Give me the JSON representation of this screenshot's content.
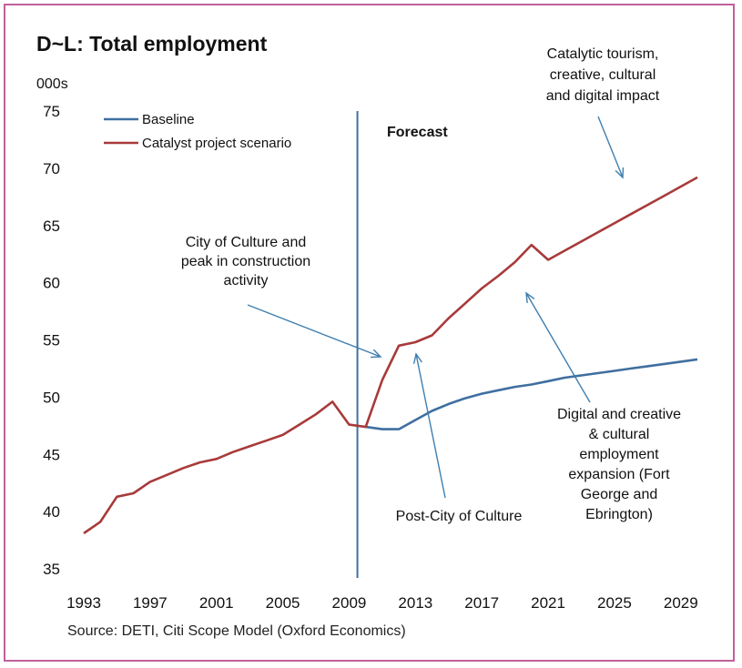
{
  "chart_data": {
    "type": "line",
    "title": "D~L: Total employment",
    "ylabel": "000s",
    "xlabel": "",
    "ylim": [
      35,
      75
    ],
    "yticks": [
      "35",
      "40",
      "45",
      "50",
      "55",
      "60",
      "65",
      "70",
      "75"
    ],
    "xlim": [
      1993,
      2030
    ],
    "xticks": [
      "1993",
      "1997",
      "2001",
      "2005",
      "2009",
      "2013",
      "2017",
      "2021",
      "2025",
      "2029"
    ],
    "grid": false,
    "legend_position": "top-left",
    "forecast_year": 2009.5,
    "forecast_label": "Forecast",
    "series": [
      {
        "name": "Baseline",
        "color": "#3f6fa0",
        "points": [
          [
            2010,
            47.4
          ],
          [
            2011,
            47.2
          ],
          [
            2012,
            47.2
          ],
          [
            2013,
            48.0
          ],
          [
            2014,
            48.8
          ],
          [
            2015,
            49.4
          ],
          [
            2016,
            49.9
          ],
          [
            2017,
            50.3
          ],
          [
            2018,
            50.6
          ],
          [
            2019,
            50.9
          ],
          [
            2020,
            51.1
          ],
          [
            2021,
            51.4
          ],
          [
            2022,
            51.7
          ],
          [
            2023,
            51.9
          ],
          [
            2024,
            52.1
          ],
          [
            2025,
            52.3
          ],
          [
            2026,
            52.5
          ],
          [
            2027,
            52.7
          ],
          [
            2028,
            52.9
          ],
          [
            2029,
            53.1
          ],
          [
            2030,
            53.3
          ]
        ]
      },
      {
        "name": "Catalyst project scenario",
        "color": "#a83a3a",
        "points": [
          [
            1993,
            38.1
          ],
          [
            1994,
            39.1
          ],
          [
            1995,
            41.3
          ],
          [
            1996,
            41.6
          ],
          [
            1997,
            42.6
          ],
          [
            1998,
            43.2
          ],
          [
            1999,
            43.8
          ],
          [
            2000,
            44.3
          ],
          [
            2001,
            44.6
          ],
          [
            2002,
            45.2
          ],
          [
            2003,
            45.7
          ],
          [
            2004,
            46.2
          ],
          [
            2005,
            46.7
          ],
          [
            2006,
            47.6
          ],
          [
            2007,
            48.5
          ],
          [
            2008,
            49.6
          ],
          [
            2009,
            47.6
          ],
          [
            2010,
            47.4
          ],
          [
            2011,
            51.5
          ],
          [
            2012,
            54.5
          ],
          [
            2013,
            54.8
          ],
          [
            2014,
            55.4
          ],
          [
            2015,
            56.9
          ],
          [
            2016,
            58.2
          ],
          [
            2017,
            59.5
          ],
          [
            2018,
            60.6
          ],
          [
            2019,
            61.8
          ],
          [
            2020,
            63.3
          ],
          [
            2021,
            62.0
          ],
          [
            2022,
            62.8
          ],
          [
            2023,
            63.6
          ],
          [
            2024,
            64.4
          ],
          [
            2025,
            65.2
          ],
          [
            2026,
            66.0
          ],
          [
            2027,
            66.8
          ],
          [
            2028,
            67.6
          ],
          [
            2029,
            68.4
          ],
          [
            2030,
            69.2
          ]
        ]
      }
    ],
    "annotations": [
      {
        "id": "tourism",
        "lines": [
          "Catalytic tourism,",
          "creative, cultural",
          "and digital impact"
        ]
      },
      {
        "id": "city-culture",
        "lines": [
          "City  of Culture and",
          "peak in construction",
          "activity"
        ]
      },
      {
        "id": "digital",
        "lines": [
          "Digital and creative",
          "& cultural",
          "employment",
          "expansion (Fort",
          "George and",
          "Ebrington)"
        ]
      },
      {
        "id": "post-city",
        "lines": [
          "Post-City of Culture"
        ]
      }
    ],
    "source": "Source: DETI, Citi Scope Model (Oxford Economics)",
    "arrow_color": "#3f7fb0"
  }
}
